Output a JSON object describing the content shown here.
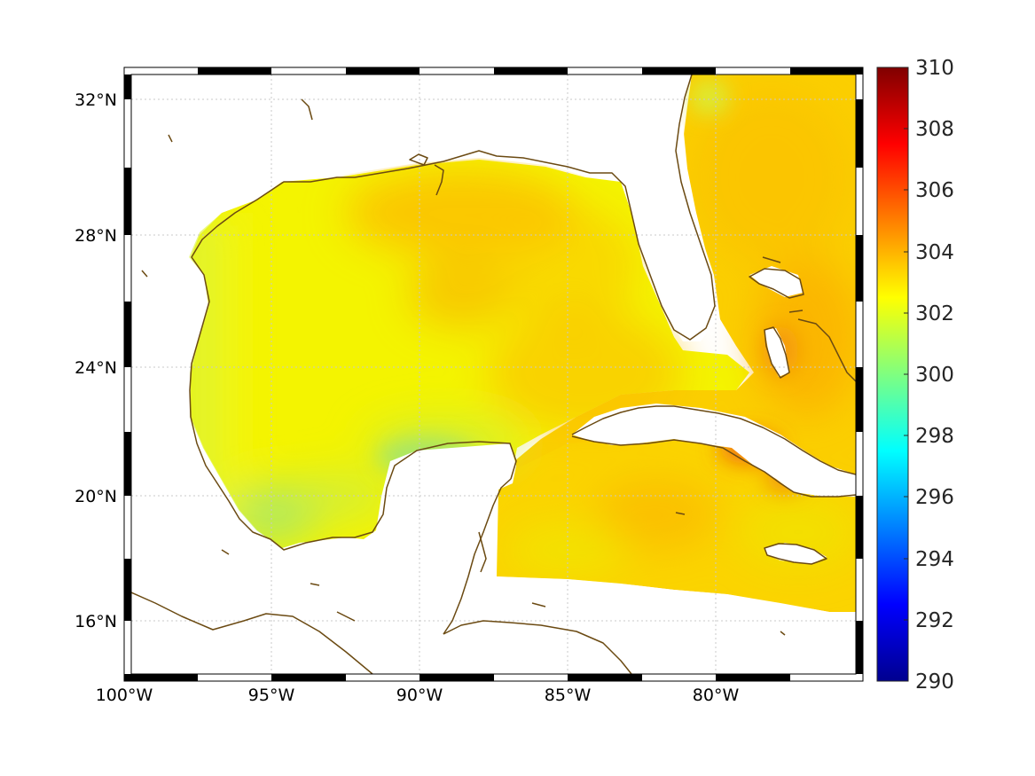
{
  "map": {
    "region": "Gulf of Mexico and northwestern Caribbean",
    "lon_range": [
      -100,
      -75
    ],
    "lat_range": [
      14.2,
      33
    ],
    "field": "sea surface temperature",
    "colormap": "jet",
    "colors": {
      "coastline": "#6b4a12",
      "grid": "#c8c8c8",
      "land": "#ffffff"
    }
  },
  "axes": {
    "x_ticks": [
      {
        "value": -100,
        "label": "100°W"
      },
      {
        "value": -95,
        "label": "95°W"
      },
      {
        "value": -90,
        "label": "90°W"
      },
      {
        "value": -85,
        "label": "85°W"
      },
      {
        "value": -80,
        "label": "80°W"
      }
    ],
    "y_ticks": [
      {
        "value": 32,
        "label": "32°N"
      },
      {
        "value": 28,
        "label": "28°N"
      },
      {
        "value": 24,
        "label": "24°N"
      },
      {
        "value": 20,
        "label": "20°N"
      },
      {
        "value": 16,
        "label": "16°N"
      }
    ],
    "grid": true,
    "frame": "black-white checkered"
  },
  "colorbar": {
    "min": 290,
    "max": 310,
    "position": "right",
    "ticks": [
      {
        "value": 310,
        "label": "310"
      },
      {
        "value": 308,
        "label": "308"
      },
      {
        "value": 306,
        "label": "306"
      },
      {
        "value": 304,
        "label": "304"
      },
      {
        "value": 302,
        "label": "302"
      },
      {
        "value": 300,
        "label": "300"
      },
      {
        "value": 298,
        "label": "298"
      },
      {
        "value": 296,
        "label": "296"
      },
      {
        "value": 294,
        "label": "294"
      },
      {
        "value": 292,
        "label": "292"
      },
      {
        "value": 290,
        "label": "290"
      }
    ]
  }
}
